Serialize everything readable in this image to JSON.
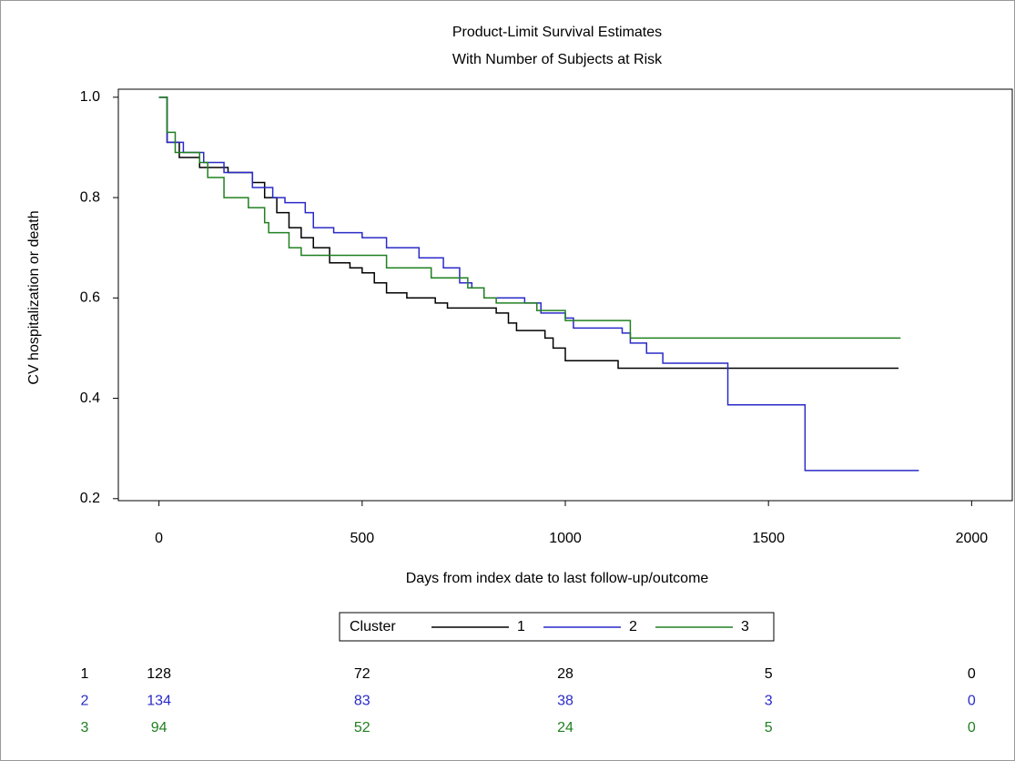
{
  "chart_data": {
    "type": "step",
    "title": "Product-Limit Survival Estimates",
    "subtitle": "With Number of Subjects at Risk",
    "x_label": "Days from index date to last follow-up/outcome",
    "y_label": "CV hospitalization or death",
    "xlim": [
      -100,
      2100
    ],
    "ylim": [
      0.196,
      1.016
    ],
    "xticks": [
      0,
      500,
      1000,
      1500,
      2000
    ],
    "yticks": [
      0.2,
      0.4,
      0.6,
      0.8,
      {
        "value": 1,
        "label": "1.0"
      }
    ],
    "legend_title": "Cluster",
    "series": [
      {
        "name": "1",
        "color": "#000000",
        "x": [
          0,
          20,
          50,
          100,
          170,
          230,
          260,
          290,
          320,
          350,
          380,
          420,
          470,
          500,
          530,
          560,
          610,
          680,
          710,
          830,
          860,
          880,
          950,
          970,
          1000,
          1130,
          1820
        ],
        "values": [
          1,
          0.91,
          0.88,
          0.86,
          0.85,
          0.83,
          0.8,
          0.77,
          0.74,
          0.72,
          0.7,
          0.67,
          0.66,
          0.65,
          0.63,
          0.61,
          0.6,
          0.59,
          0.58,
          0.57,
          0.55,
          0.535,
          0.52,
          0.5,
          0.475,
          0.46,
          0.46
        ],
        "at_risk": [
          128,
          72,
          28,
          5,
          0
        ]
      },
      {
        "name": "2",
        "color": "#2a2ac8",
        "x": [
          0,
          20,
          60,
          110,
          160,
          230,
          280,
          310,
          360,
          380,
          430,
          500,
          560,
          640,
          700,
          740,
          770,
          800,
          900,
          940,
          1000,
          1020,
          1140,
          1160,
          1200,
          1240,
          1400,
          1590,
          1870
        ],
        "values": [
          1,
          0.91,
          0.89,
          0.87,
          0.85,
          0.82,
          0.8,
          0.79,
          0.77,
          0.74,
          0.73,
          0.72,
          0.7,
          0.68,
          0.66,
          0.63,
          0.62,
          0.6,
          0.59,
          0.57,
          0.56,
          0.54,
          0.53,
          0.51,
          0.49,
          0.47,
          0.387,
          0.256,
          0.256
        ],
        "at_risk": [
          134,
          83,
          38,
          3,
          0
        ]
      },
      {
        "name": "3",
        "color": "#208020",
        "x": [
          0,
          20,
          40,
          100,
          120,
          160,
          220,
          260,
          270,
          320,
          350,
          560,
          670,
          760,
          800,
          830,
          930,
          1000,
          1160,
          1825
        ],
        "values": [
          1,
          0.93,
          0.89,
          0.87,
          0.84,
          0.8,
          0.78,
          0.75,
          0.73,
          0.7,
          0.685,
          0.66,
          0.64,
          0.62,
          0.6,
          0.59,
          0.575,
          0.555,
          0.52,
          0.52
        ],
        "at_risk": [
          94,
          52,
          24,
          5,
          0
        ]
      }
    ]
  }
}
